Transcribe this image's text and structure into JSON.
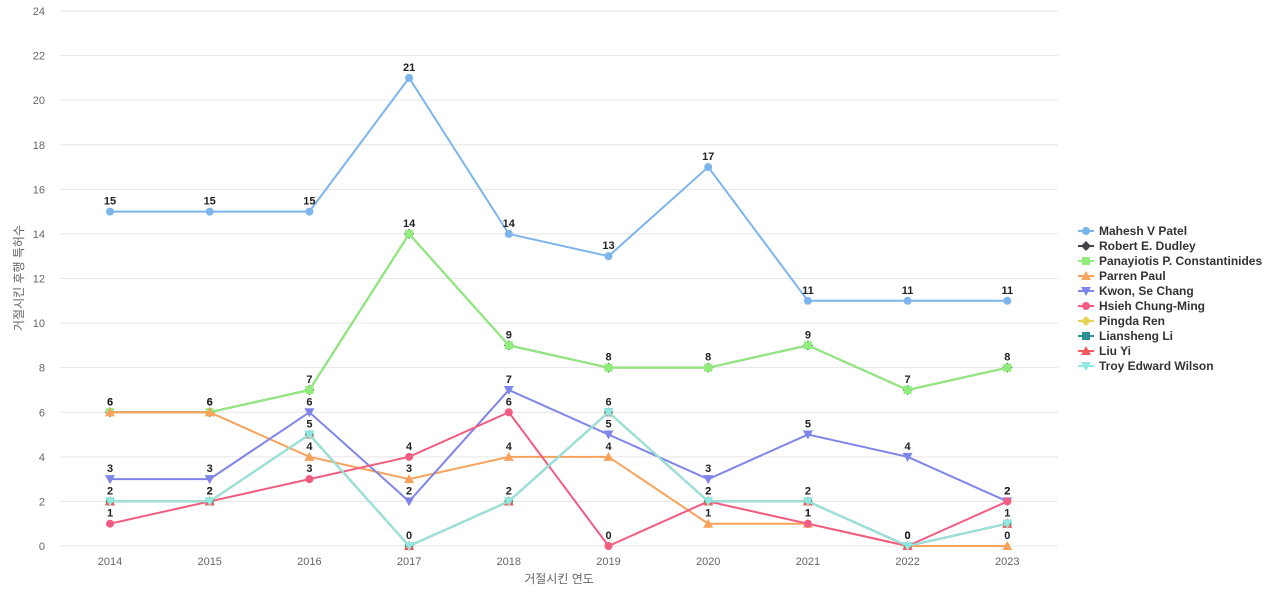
{
  "chart_data": {
    "type": "line",
    "title": "",
    "xlabel": "거절시킨 연도",
    "ylabel": "거절시킨 후행 특허수",
    "ylim": [
      0,
      24
    ],
    "y_ticks": [
      0,
      2,
      4,
      6,
      8,
      10,
      12,
      14,
      16,
      18,
      20,
      22,
      24
    ],
    "grid": true,
    "legend_position": "right",
    "categories": [
      "2014",
      "2015",
      "2016",
      "2017",
      "2018",
      "2019",
      "2020",
      "2021",
      "2022",
      "2023"
    ],
    "series": [
      {
        "name": "Mahesh V Patel",
        "color": "#7cb5ec",
        "marker": "circle",
        "values": [
          15,
          15,
          15,
          21,
          14,
          13,
          17,
          11,
          11,
          11
        ],
        "show_labels": true
      },
      {
        "name": "Robert E. Dudley",
        "color": "#434348",
        "marker": "diamond",
        "values": [
          6,
          6,
          7,
          14,
          9,
          8,
          8,
          9,
          7,
          8
        ],
        "show_labels": false
      },
      {
        "name": "Panayiotis P. Constantinides",
        "color": "#90ed7d",
        "marker": "square",
        "values": [
          6,
          6,
          7,
          14,
          9,
          8,
          8,
          9,
          7,
          8
        ],
        "show_labels": true
      },
      {
        "name": "Parren Paul",
        "color": "#f7a35c",
        "marker": "triangle",
        "values": [
          6,
          6,
          4,
          3,
          4,
          4,
          1,
          1,
          0,
          0
        ],
        "show_labels": true
      },
      {
        "name": "Kwon, Se Chang",
        "color": "#8085e9",
        "marker": "triangle-down",
        "values": [
          3,
          3,
          6,
          2,
          7,
          5,
          3,
          5,
          4,
          2
        ],
        "show_labels": true
      },
      {
        "name": "Hsieh Chung-Ming",
        "color": "#f15c80",
        "marker": "circle",
        "values": [
          1,
          2,
          3,
          4,
          6,
          0,
          2,
          1,
          0,
          2
        ],
        "show_labels": true
      },
      {
        "name": "Pingda Ren",
        "color": "#e4d354",
        "marker": "diamond",
        "values": [
          2,
          2,
          5,
          0,
          2,
          6,
          2,
          2,
          0,
          1
        ],
        "show_labels": false
      },
      {
        "name": "Liansheng Li",
        "color": "#2b908f",
        "marker": "square",
        "values": [
          2,
          2,
          5,
          0,
          2,
          6,
          2,
          2,
          0,
          1
        ],
        "show_labels": false
      },
      {
        "name": "Liu Yi",
        "color": "#f45b5b",
        "marker": "triangle",
        "values": [
          2,
          2,
          5,
          0,
          2,
          6,
          2,
          2,
          0,
          1
        ],
        "show_labels": false
      },
      {
        "name": "Troy Edward Wilson",
        "color": "#91e8e1",
        "marker": "triangle-down",
        "values": [
          2,
          2,
          5,
          0,
          2,
          6,
          2,
          2,
          0,
          1
        ],
        "show_labels": true
      }
    ]
  }
}
